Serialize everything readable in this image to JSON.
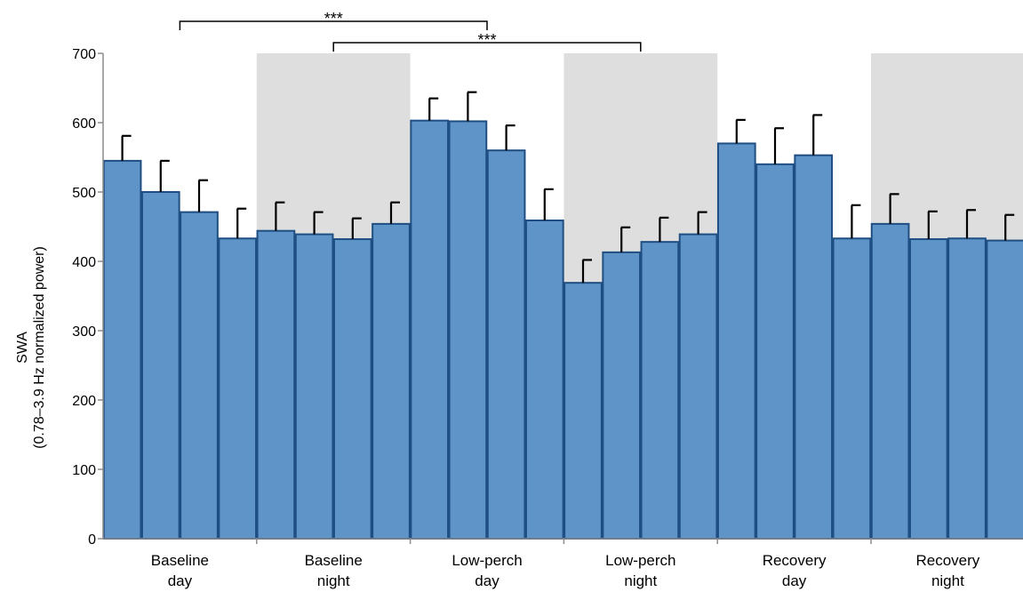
{
  "chart_data": {
    "type": "bar",
    "title": "",
    "ylabel_line1": "SWA",
    "ylabel_line2": "(0.78–3.9 Hz normalized power)",
    "ylim": [
      0,
      700
    ],
    "yticks": [
      0,
      100,
      200,
      300,
      400,
      500,
      600,
      700
    ],
    "grid": false,
    "groups": [
      {
        "label_line1": "Baseline",
        "label_line2": "day",
        "shaded": false
      },
      {
        "label_line1": "Baseline",
        "label_line2": "night",
        "shaded": true
      },
      {
        "label_line1": "Low-perch",
        "label_line2": "day",
        "shaded": false
      },
      {
        "label_line1": "Low-perch",
        "label_line2": "night",
        "shaded": true
      },
      {
        "label_line1": "Recovery",
        "label_line2": "day",
        "shaded": false
      },
      {
        "label_line1": "Recovery",
        "label_line2": "night",
        "shaded": true
      }
    ],
    "bars_per_group": 4,
    "values": [
      545,
      500,
      471,
      433,
      444,
      439,
      432,
      454,
      603,
      602,
      560,
      459,
      369,
      413,
      428,
      439,
      570,
      540,
      553,
      433,
      454,
      432,
      433,
      430
    ],
    "errors": [
      36,
      45,
      46,
      43,
      41,
      32,
      30,
      31,
      32,
      42,
      36,
      45,
      33,
      36,
      35,
      32,
      34,
      52,
      58,
      48,
      43,
      40,
      41,
      37
    ],
    "significance": [
      {
        "label": "***",
        "from_group": 0,
        "to_group": 2
      },
      {
        "label": "***",
        "from_group": 1,
        "to_group": 3
      }
    ],
    "colors": {
      "bar_fill": "#5f94c8",
      "bar_stroke": "#1f4e82",
      "shade": "#dedede",
      "error_bar": "#000000"
    }
  }
}
